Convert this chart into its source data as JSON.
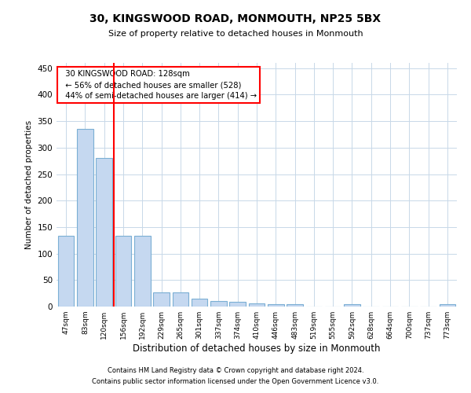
{
  "title": "30, KINGSWOOD ROAD, MONMOUTH, NP25 5BX",
  "subtitle": "Size of property relative to detached houses in Monmouth",
  "xlabel": "Distribution of detached houses by size in Monmouth",
  "ylabel": "Number of detached properties",
  "categories": [
    "47sqm",
    "83sqm",
    "120sqm",
    "156sqm",
    "192sqm",
    "229sqm",
    "265sqm",
    "301sqm",
    "337sqm",
    "374sqm",
    "410sqm",
    "446sqm",
    "483sqm",
    "519sqm",
    "555sqm",
    "592sqm",
    "628sqm",
    "664sqm",
    "700sqm",
    "737sqm",
    "773sqm"
  ],
  "values": [
    134,
    335,
    280,
    133,
    133,
    26,
    26,
    15,
    11,
    9,
    6,
    5,
    5,
    0,
    0,
    4,
    0,
    0,
    0,
    0,
    4
  ],
  "bar_color": "#c5d8f0",
  "bar_edge_color": "#7bafd4",
  "redline_x": 2.5,
  "annotation_title": "30 KINGSWOOD ROAD: 128sqm",
  "annotation_line1": "← 56% of detached houses are smaller (528)",
  "annotation_line2": "44% of semi-detached houses are larger (414) →",
  "annotation_box_color": "white",
  "annotation_box_edge": "red",
  "ylim": [
    0,
    460
  ],
  "yticks": [
    0,
    50,
    100,
    150,
    200,
    250,
    300,
    350,
    400,
    450
  ],
  "footer1": "Contains HM Land Registry data © Crown copyright and database right 2024.",
  "footer2": "Contains public sector information licensed under the Open Government Licence v3.0.",
  "bg_color": "#ffffff",
  "grid_color": "#c8d8e8"
}
